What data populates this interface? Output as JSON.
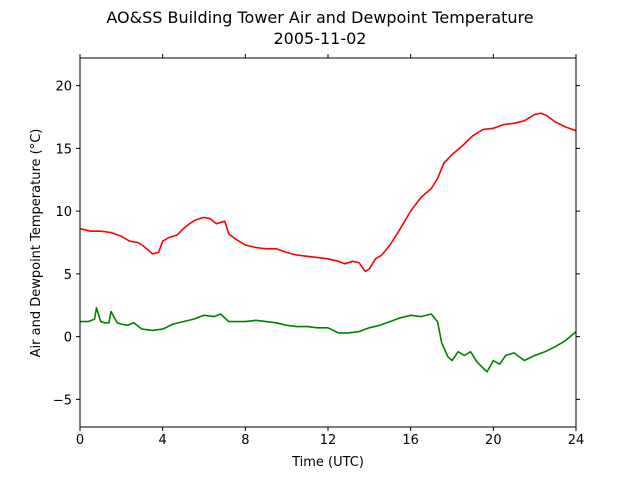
{
  "chart_data": {
    "type": "line",
    "title": "AO&SS Building Tower Air and Dewpoint Temperature",
    "subtitle": "2005-11-02",
    "xlabel": "Time (UTC)",
    "ylabel": "Air and Dewpoint Temperature (°C)",
    "xlim": [
      0,
      24
    ],
    "ylim": [
      -7.2,
      22.2
    ],
    "xticks": [
      0,
      4,
      8,
      12,
      16,
      20,
      24
    ],
    "yticks": [
      -5,
      0,
      5,
      10,
      15,
      20
    ],
    "grid": false,
    "legend": "none",
    "series": [
      {
        "color": "#ff0000",
        "x": [
          0.0,
          0.5,
          1.0,
          1.5,
          2.0,
          2.4,
          2.8,
          3.0,
          3.3,
          3.5,
          3.8,
          4.0,
          4.3,
          4.7,
          5.0,
          5.3,
          5.6,
          6.0,
          6.3,
          6.6,
          7.0,
          7.2,
          7.5,
          8.0,
          8.5,
          9.0,
          9.5,
          10.0,
          10.5,
          11.0,
          11.5,
          12.0,
          12.5,
          12.8,
          13.2,
          13.5,
          13.8,
          14.0,
          14.3,
          14.6,
          15.0,
          15.5,
          16.0,
          16.5,
          17.0,
          17.3,
          17.6,
          18.0,
          18.5,
          19.0,
          19.5,
          20.0,
          20.5,
          21.0,
          21.5,
          22.0,
          22.3,
          22.6,
          23.0,
          23.5,
          24.0
        ],
        "y": [
          8.6,
          8.4,
          8.4,
          8.3,
          8.0,
          7.6,
          7.5,
          7.3,
          6.9,
          6.6,
          6.7,
          7.6,
          7.9,
          8.1,
          8.6,
          9.0,
          9.3,
          9.5,
          9.4,
          9.0,
          9.2,
          8.2,
          7.8,
          7.3,
          7.1,
          7.0,
          7.0,
          6.7,
          6.5,
          6.4,
          6.3,
          6.2,
          6.0,
          5.8,
          6.0,
          5.9,
          5.2,
          5.4,
          6.2,
          6.5,
          7.3,
          8.6,
          10.0,
          11.1,
          11.8,
          12.6,
          13.8,
          14.5,
          15.2,
          16.0,
          16.5,
          16.6,
          16.9,
          17.0,
          17.2,
          17.7,
          17.8,
          17.6,
          17.1,
          16.7,
          16.4
        ]
      },
      {
        "color": "#008000",
        "x": [
          0.0,
          0.4,
          0.7,
          0.8,
          1.0,
          1.2,
          1.4,
          1.5,
          1.8,
          2.0,
          2.3,
          2.6,
          3.0,
          3.5,
          4.0,
          4.5,
          5.0,
          5.5,
          6.0,
          6.5,
          6.8,
          7.2,
          8.0,
          8.5,
          9.0,
          9.5,
          10.0,
          10.5,
          11.0,
          11.5,
          12.0,
          12.5,
          13.0,
          13.5,
          14.0,
          14.5,
          15.0,
          15.5,
          16.0,
          16.5,
          17.0,
          17.3,
          17.5,
          17.8,
          18.0,
          18.3,
          18.6,
          18.9,
          19.2,
          19.5,
          19.7,
          20.0,
          20.3,
          20.6,
          21.0,
          21.5,
          22.0,
          22.5,
          23.0,
          23.5,
          24.0
        ],
        "y": [
          1.2,
          1.2,
          1.4,
          2.3,
          1.2,
          1.1,
          1.1,
          2.0,
          1.1,
          1.0,
          0.9,
          1.1,
          0.6,
          0.5,
          0.6,
          1.0,
          1.2,
          1.4,
          1.7,
          1.6,
          1.8,
          1.2,
          1.2,
          1.3,
          1.2,
          1.1,
          0.9,
          0.8,
          0.8,
          0.7,
          0.7,
          0.3,
          0.3,
          0.4,
          0.7,
          0.9,
          1.2,
          1.5,
          1.7,
          1.6,
          1.8,
          1.2,
          -0.5,
          -1.6,
          -1.9,
          -1.2,
          -1.5,
          -1.2,
          -2.0,
          -2.5,
          -2.8,
          -1.9,
          -2.2,
          -1.5,
          -1.3,
          -1.9,
          -1.5,
          -1.2,
          -0.8,
          -0.3,
          0.4
        ]
      }
    ]
  }
}
